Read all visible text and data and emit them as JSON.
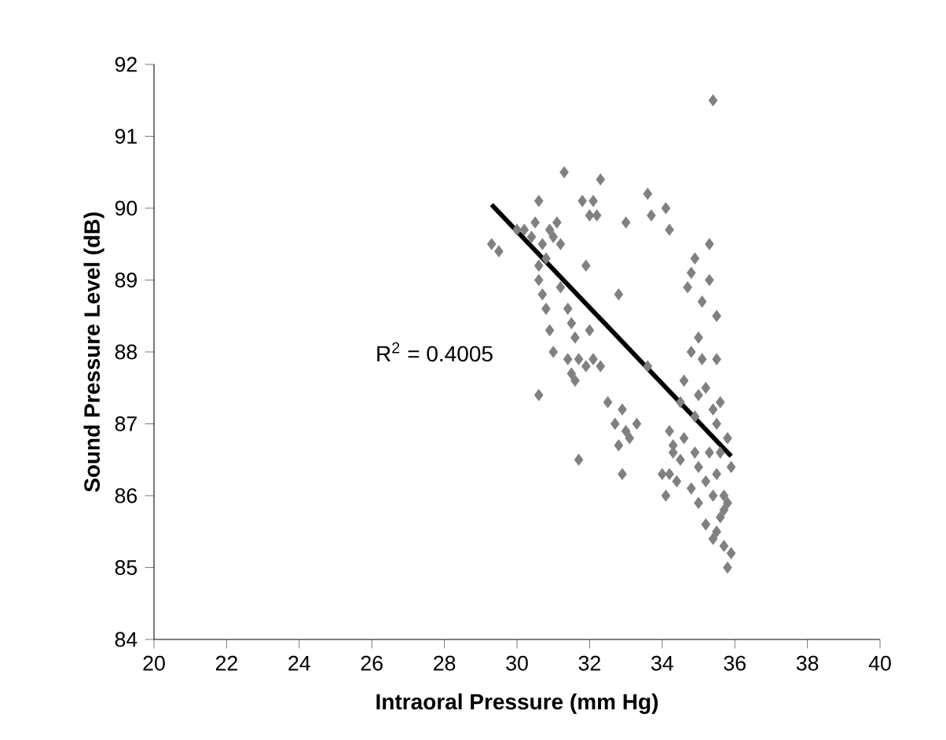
{
  "chart_data": {
    "type": "scatter",
    "xlabel": "Intraoral Pressure (mm Hg)",
    "ylabel": "Sound Pressure Level (dB)",
    "xlim": [
      20,
      40
    ],
    "xticks": [
      20,
      22,
      24,
      26,
      28,
      30,
      32,
      34,
      36,
      38,
      40
    ],
    "ylim": [
      84,
      92
    ],
    "yticks": [
      84,
      85,
      86,
      87,
      88,
      89,
      90,
      91,
      92
    ],
    "grid": false,
    "annotations": [
      "R$^{2}$ = 0.4005"
    ],
    "series": [
      {
        "marker": "diamond",
        "color": "#808080",
        "x": [
          29.3,
          29.5,
          30.0,
          30.2,
          30.4,
          30.5,
          30.6,
          30.7,
          30.8,
          30.6,
          30.9,
          31.0,
          31.1,
          31.3,
          31.2,
          30.6,
          30.7,
          30.8,
          30.9,
          30.6,
          31.0,
          31.2,
          31.4,
          31.5,
          31.6,
          31.4,
          31.6,
          31.7,
          31.9,
          31.5,
          31.9,
          32.0,
          31.8,
          32.1,
          32.3,
          32.2,
          32.0,
          32.1,
          32.3,
          32.5,
          32.7,
          32.9,
          33.0,
          32.8,
          33.1,
          33.3,
          32.9,
          31.7,
          33.0,
          32.8,
          33.6,
          33.7,
          34.1,
          34.2,
          33.6,
          34.0,
          34.1,
          34.3,
          34.2,
          34.5,
          34.6,
          34.8,
          34.7,
          34.8,
          34.9,
          35.1,
          35.3,
          35.3,
          35.5,
          35.5,
          34.5,
          34.4,
          34.2,
          34.3,
          34.6,
          34.9,
          35.0,
          35.2,
          35.4,
          35.5,
          35.6,
          35.8,
          35.9,
          35.7,
          35.8,
          35.6,
          35.7,
          35.8,
          35.5,
          35.2,
          35.0,
          34.8,
          35.0,
          35.3,
          35.5,
          35.2,
          34.9,
          35.4,
          35.1,
          35.0,
          35.4,
          35.7,
          35.9,
          35.6,
          35.4
        ],
        "values": [
          89.5,
          89.4,
          89.7,
          89.7,
          89.6,
          89.8,
          90.1,
          89.5,
          89.3,
          89.2,
          89.7,
          89.6,
          89.8,
          90.5,
          89.5,
          89.0,
          88.8,
          88.6,
          88.3,
          87.4,
          88.0,
          88.9,
          88.6,
          88.4,
          88.2,
          87.9,
          87.6,
          87.9,
          87.8,
          87.7,
          89.2,
          89.9,
          90.1,
          90.1,
          90.4,
          89.9,
          88.3,
          87.9,
          87.8,
          87.3,
          87.0,
          87.2,
          86.9,
          86.7,
          86.8,
          87.0,
          86.3,
          86.5,
          89.8,
          88.8,
          90.2,
          89.9,
          90.0,
          89.7,
          87.8,
          86.3,
          86.0,
          86.6,
          86.9,
          87.3,
          87.6,
          88.0,
          88.9,
          89.1,
          89.3,
          88.7,
          89.0,
          89.5,
          88.5,
          87.9,
          86.5,
          86.2,
          86.3,
          86.7,
          86.8,
          87.1,
          87.4,
          87.5,
          87.2,
          87.0,
          87.3,
          86.8,
          86.4,
          86.0,
          85.9,
          85.7,
          85.3,
          85.0,
          85.5,
          85.6,
          85.9,
          86.1,
          86.4,
          86.6,
          86.3,
          86.2,
          86.6,
          86.0,
          87.9,
          88.2,
          91.5,
          85.8,
          85.2,
          86.6,
          85.4
        ]
      },
      {
        "type": "line",
        "marker": "none",
        "color": "#000000",
        "x": [
          29.3,
          35.9
        ],
        "values": [
          90.05,
          86.55
        ]
      }
    ]
  }
}
